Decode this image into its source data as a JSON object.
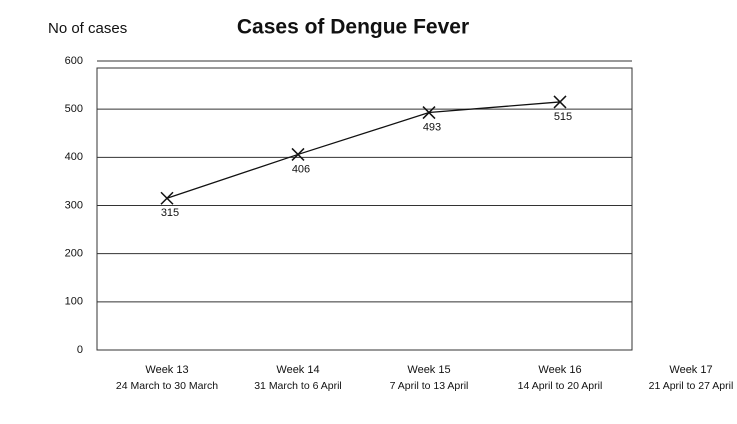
{
  "chart_data": {
    "type": "line",
    "title": "Cases of Dengue Fever",
    "y_label": "No of cases",
    "categories": [
      "Week 13",
      "Week 14",
      "Week 15",
      "Week 16",
      "Week 17"
    ],
    "category_dates": [
      "24 March to 30 March",
      "31 March to 6 April",
      "7 April to 13 April",
      "14 April to 20 April",
      "21 April to 27 April"
    ],
    "values": [
      315,
      406,
      493,
      515,
      null
    ],
    "color": "#111111",
    "ylim": [
      0,
      600
    ],
    "yticks": [
      0,
      100,
      200,
      300,
      400,
      500,
      600
    ],
    "grid": true
  }
}
